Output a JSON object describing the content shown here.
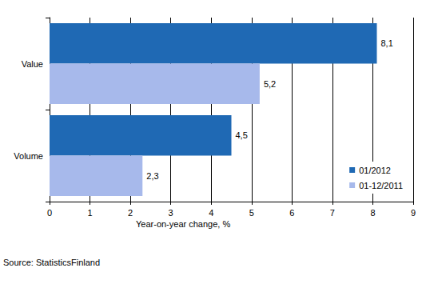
{
  "chart_data": {
    "type": "bar",
    "orientation": "horizontal",
    "categories": [
      "Value",
      "Volume"
    ],
    "series": [
      {
        "name": "01/2012",
        "color": "#1f69b4",
        "values": [
          8.1,
          4.5
        ],
        "value_labels": [
          "8,1",
          "4,5"
        ]
      },
      {
        "name": "01-12/2011",
        "color": "#a7b9eb",
        "values": [
          5.2,
          2.3
        ],
        "value_labels": [
          "5,2",
          "2,3"
        ]
      }
    ],
    "xlim": [
      0,
      9
    ],
    "xticks": [
      0,
      1,
      2,
      3,
      4,
      5,
      6,
      7,
      8,
      9
    ],
    "x_label": "Year-on-year change, %",
    "source": "Source: StatisticsFinland",
    "grid": true,
    "data_labels": true,
    "legend": "lower right"
  }
}
